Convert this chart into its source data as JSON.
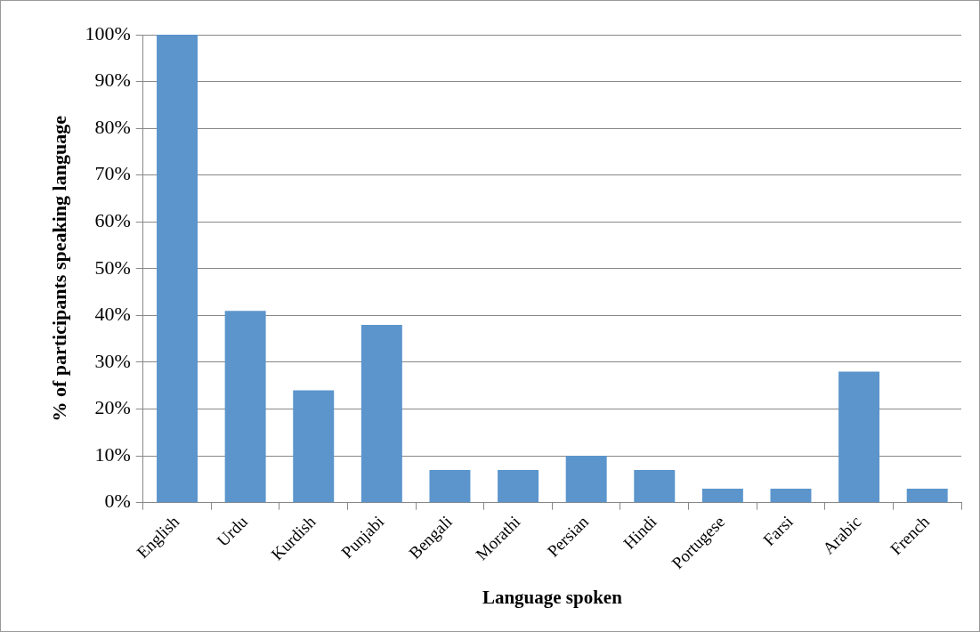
{
  "chart_data": {
    "type": "bar",
    "xlabel": "Language spoken",
    "ylabel": "% of participants speaking language",
    "categories": [
      "English",
      "Urdu",
      "Kurdish",
      "Punjabi",
      "Bengali",
      "Morathi",
      "Persian",
      "Hindi",
      "Portugese",
      "Farsi",
      "Arabic",
      "French"
    ],
    "values": [
      100,
      41,
      24,
      38,
      7,
      7,
      10,
      7,
      3,
      3,
      28,
      3
    ],
    "color": "#5b95cc",
    "ylim": [
      0,
      100
    ],
    "yticks": [
      {
        "value": 0,
        "label": "0%"
      },
      {
        "value": 10,
        "label": "10%"
      },
      {
        "value": 20,
        "label": "20%"
      },
      {
        "value": 30,
        "label": "30%"
      },
      {
        "value": 40,
        "label": "40%"
      },
      {
        "value": 50,
        "label": "50%"
      },
      {
        "value": 60,
        "label": "60%"
      },
      {
        "value": 70,
        "label": "70%"
      },
      {
        "value": 80,
        "label": "80%"
      },
      {
        "value": 90,
        "label": "90%"
      },
      {
        "value": 100,
        "label": "100%"
      }
    ],
    "grid": "y",
    "legend": false
  }
}
